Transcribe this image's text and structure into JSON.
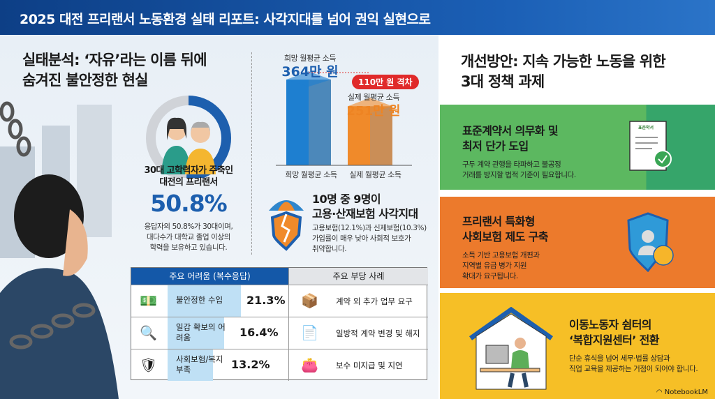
{
  "header": {
    "title": "2025 대전 프리랜서 노동환경 실태 리포트: 사각지대를 넘어 권익 실현으로"
  },
  "analysis": {
    "title_line1": "실태분석: ‘자유’라는 이름 뒤에",
    "title_line2": "숨겨진 불안정한 현실",
    "donut": {
      "value_percent": 50.8,
      "label_line1": "30대 고학력자가 주축인",
      "label_line2": "대전의 프리랜서",
      "value_text": "50.8%",
      "desc_line1": "응답자의 50.8%가 30대이며,",
      "desc_line2": "대다수가 대학교 졸업 이상의",
      "desc_line3": "학력을 보유하고 있습니다.",
      "colors": {
        "fill": "#1d5fae",
        "rest": "#d0d3d8"
      }
    },
    "chart_data": {
      "type": "bar",
      "categories": [
        "희망 월평균 소득",
        "실제 월평균 소득"
      ],
      "values": [
        364,
        251
      ],
      "unit": "만 원",
      "value_labels": [
        "364만 원",
        "251만 원"
      ],
      "top_labels": [
        "희망 월평균 소득",
        "실제 월평균 소득"
      ],
      "annotation": "110만 원 격차",
      "colors": [
        "#1e7fd0",
        "#f08a2a"
      ]
    },
    "insurance": {
      "title_line1": "10명 중 9명이",
      "title_line2": "고용·산재보험 사각지대",
      "desc_line1": "고용보험(12.1%)과 신제보험(10.3%)",
      "desc_line2": "가입률이 매우 낮아 사회적 보호가",
      "desc_line3": "취약합니다."
    },
    "table": {
      "left_header": "주요 어려움 (복수응답)",
      "right_header": "주요 부당 사례",
      "difficulties": [
        {
          "label": "불안정한 수입",
          "value": 21.3,
          "value_text": "21.3%",
          "icon": "money-icon"
        },
        {
          "label": "일감 확보의 어려움",
          "value": 16.4,
          "value_text": "16.4%",
          "icon": "handshake-search-icon"
        },
        {
          "label": "사회보험/복지 부족",
          "value": 13.2,
          "value_text": "13.2%",
          "icon": "broken-shield-icon"
        }
      ],
      "cases": [
        {
          "label": "계약 외 추가 업무 요구",
          "icon": "worker-boxes-icon"
        },
        {
          "label": "일방적 계약 변경 및 해지",
          "icon": "contract-cancel-icon"
        },
        {
          "label": "보수 미지급 및 지연",
          "icon": "wallet-icon"
        }
      ]
    }
  },
  "solutions": {
    "title_line1": "개선방안: 지속 가능한 노동을 위한",
    "title_line2": "3대 정책 과제",
    "items": [
      {
        "title_line1": "표준계약서 의무화 및",
        "title_line2": "최저 단가 도입",
        "desc_line1": "구두 계약 관행을 타파하고 불공정",
        "desc_line2": "거래를 방지할 법적 기준이 필요합니다.",
        "doc_label": "표준약서",
        "color": "#4caf50"
      },
      {
        "title_line1": "프리랜서 특화형",
        "title_line2": "사회보험 제도 구축",
        "desc_line1": "소득 기반 고용보험 개편과",
        "desc_line2": "지역별 유급 병가 지원",
        "desc_line3": "확대가 요구됩니다.",
        "color": "#ec7a2c"
      },
      {
        "title_line1": "이동노동자 쉼터의",
        "title_line2": "‘복합지원센터’ 전환",
        "desc_line1": "단순 휴식을 넘어 세무·법률 상담과",
        "desc_line2": "직업 교육을 제공하는 거점이 되어야 합니다.",
        "color": "#f6bf26"
      }
    ]
  },
  "footer": {
    "brand": "NotebookLM"
  }
}
